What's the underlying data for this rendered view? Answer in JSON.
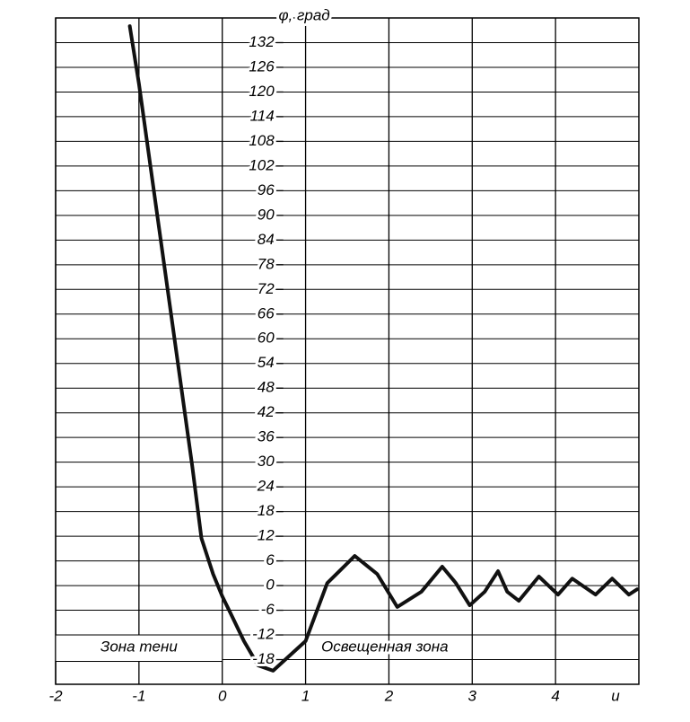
{
  "chart_data": {
    "type": "line",
    "x_label": "u",
    "y_label": "φ, град",
    "annotations": [
      "Зона тени",
      "Освещенная зона"
    ],
    "x": [
      -1.11,
      -1.0,
      -0.36,
      -0.25,
      -0.11,
      0,
      0.13,
      0.26,
      0.43,
      0.61,
      1.0,
      1.26,
      1.59,
      1.86,
      2.1,
      2.39,
      2.64,
      2.8,
      2.97,
      3.15,
      3.31,
      3.42,
      3.56,
      3.8,
      4.03,
      4.2,
      4.48,
      4.68,
      4.88,
      4.98
    ],
    "series": [
      {
        "name": "φ",
        "color": "#111111",
        "values": [
          136,
          122,
          29,
          11.5,
          2.8,
          -2.6,
          -8,
          -13.5,
          -19.4,
          -20.7,
          -13.5,
          0.6,
          7.2,
          2.8,
          -5.2,
          -1.5,
          4.6,
          0.7,
          -4.8,
          -1.5,
          3.5,
          -1.5,
          -3.7,
          2.2,
          -2.2,
          1.7,
          -2.2,
          1.7,
          -2.2,
          -0.9
        ]
      }
    ],
    "xlim": [
      -2,
      5
    ],
    "xticks": [
      -2,
      -1,
      0,
      1,
      2,
      3,
      4
    ],
    "ylim": [
      -24,
      138
    ],
    "yticks": [
      -18,
      -12,
      -6,
      0,
      6,
      12,
      18,
      24,
      30,
      36,
      42,
      48,
      54,
      60,
      66,
      72,
      78,
      84,
      90,
      96,
      102,
      108,
      114,
      120,
      126,
      132
    ],
    "grid": true
  }
}
